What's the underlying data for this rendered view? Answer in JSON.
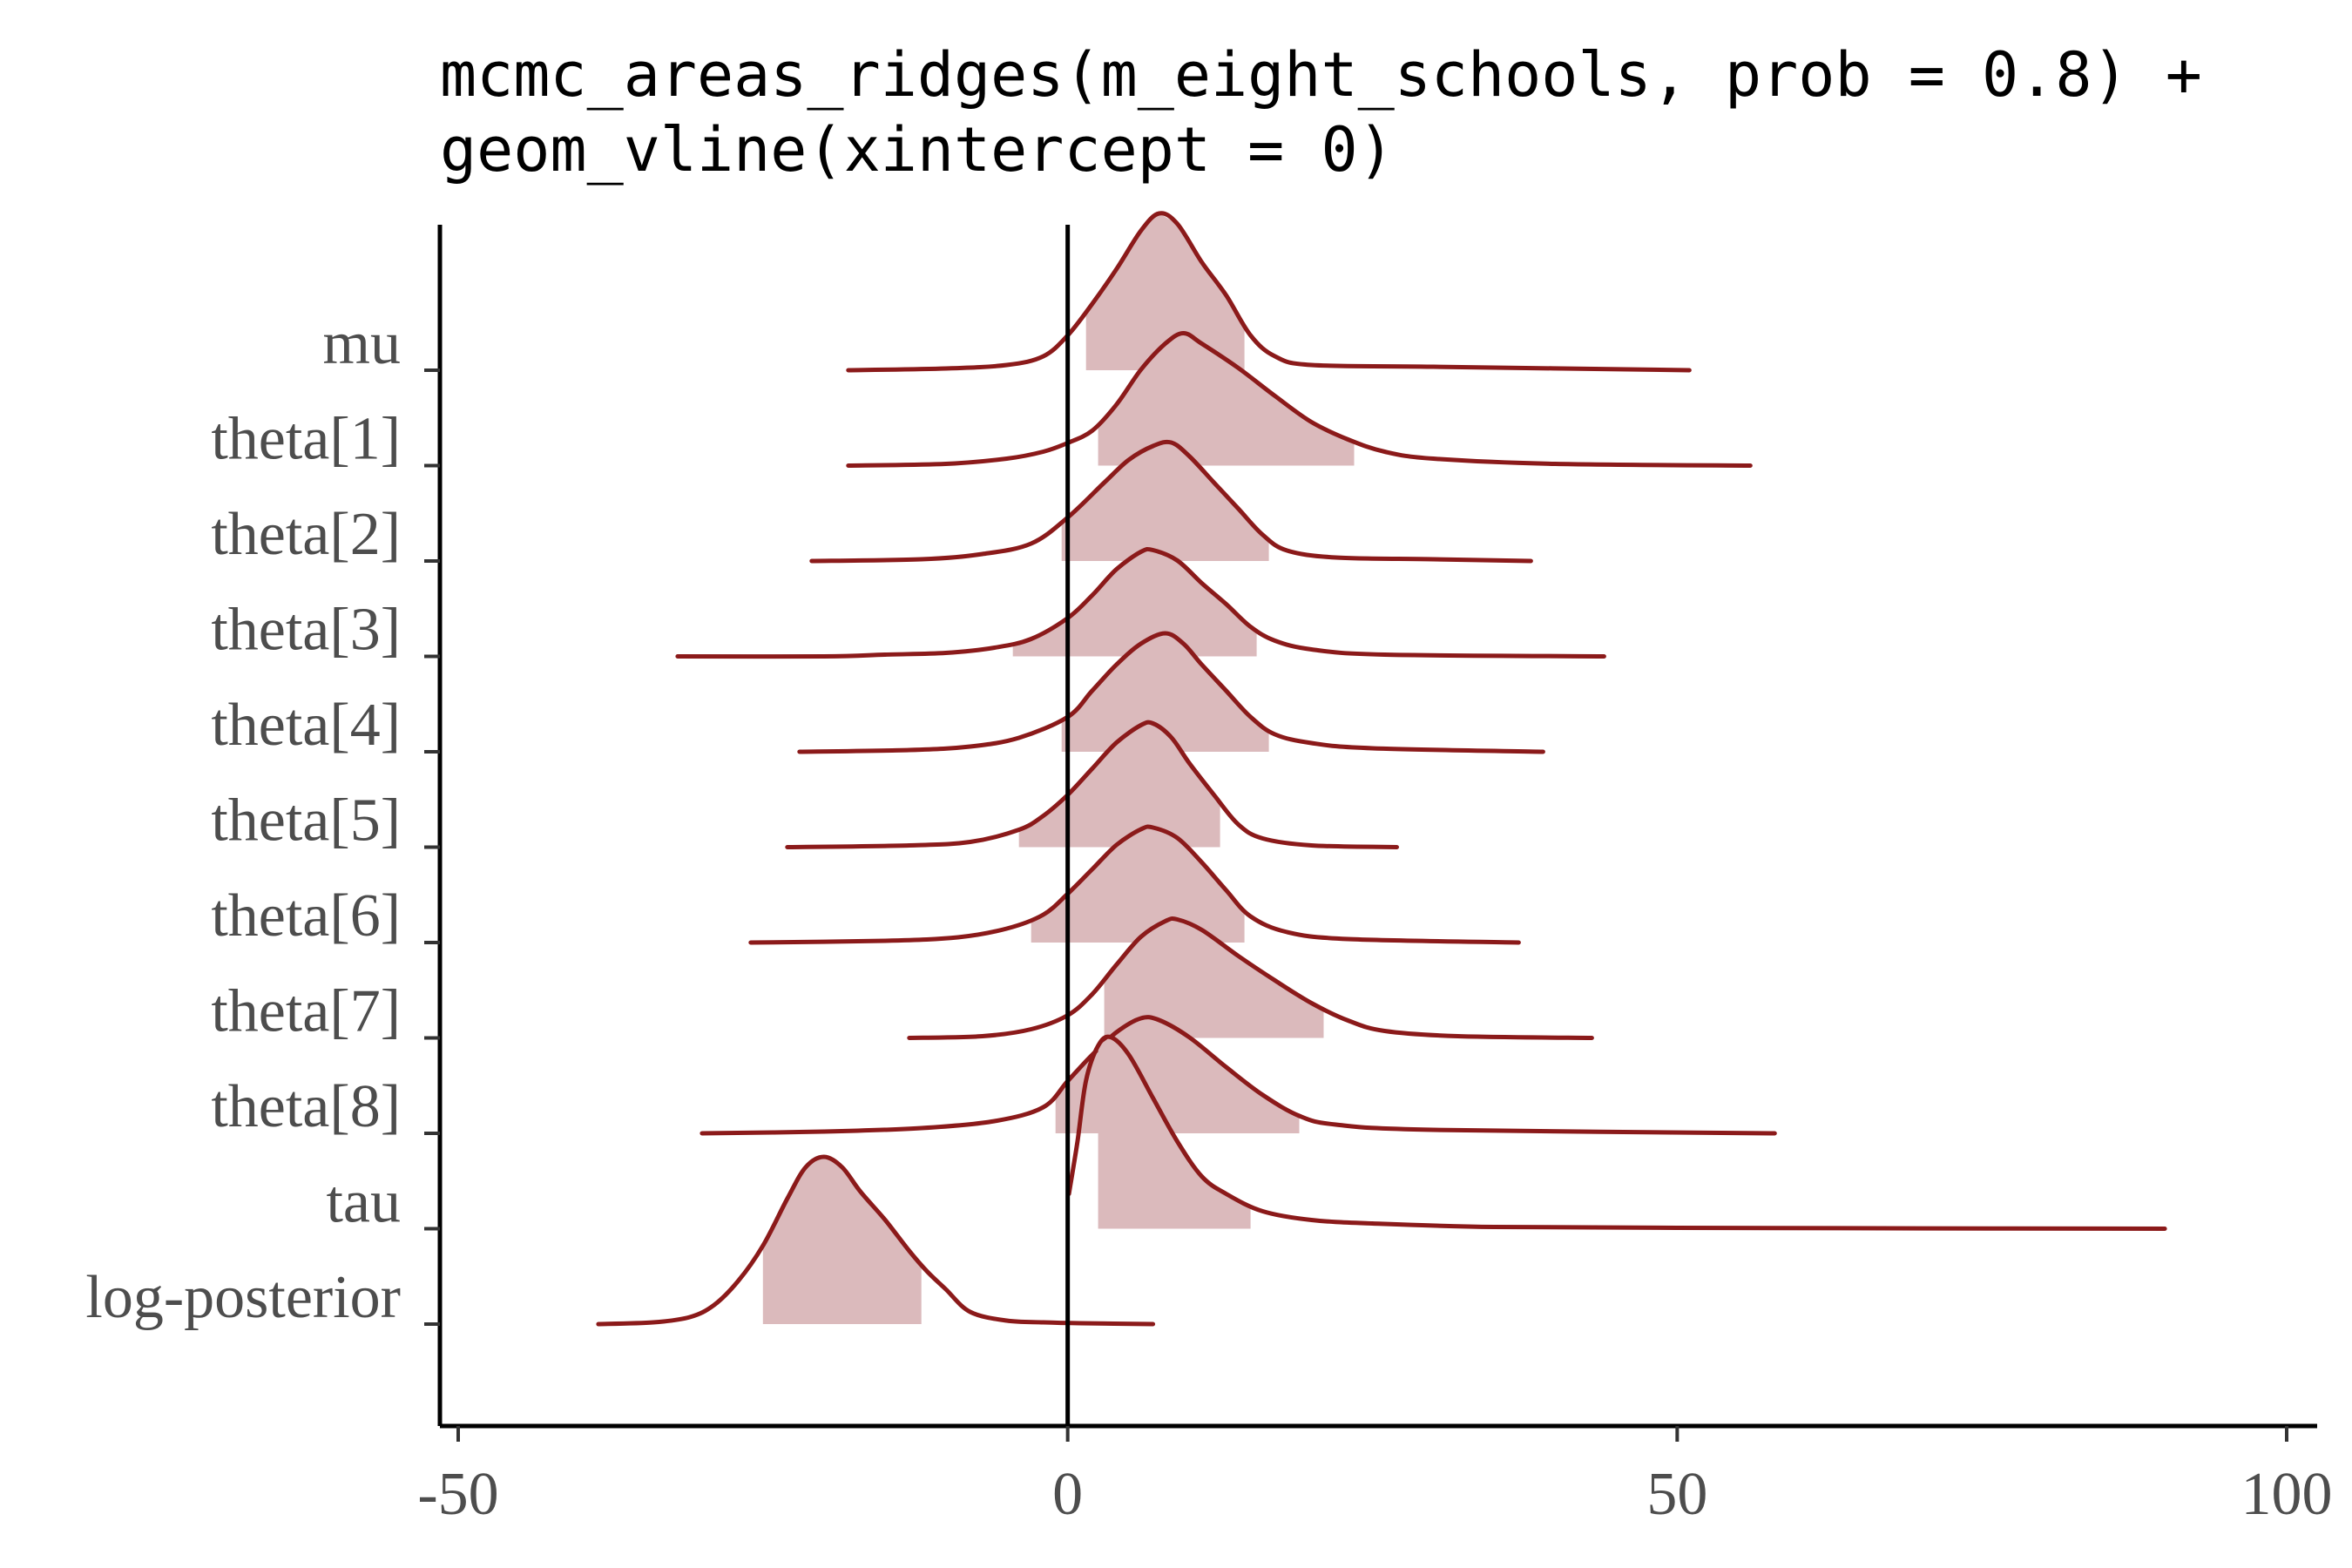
{
  "chart_data": {
    "type": "area",
    "title_lines": [
      "mcmc_areas_ridges(m_eight_schools, prob = 0.8) +",
      "  geom_vline(xintercept = 0)"
    ],
    "xlabel": "",
    "ylabel": "",
    "xlim": [
      -51.5,
      102.5
    ],
    "x_ticks": [
      -50,
      0,
      50,
      100
    ],
    "x_tick_labels": [
      "-50",
      "0",
      "50",
      "100"
    ],
    "vline_x": 0,
    "prob": 0.8,
    "colors": {
      "line": "#8b1a1a",
      "fill": "#dbbabc",
      "axis": "#000000",
      "text": "#4d4d4d"
    },
    "series": [
      {
        "name": "mu",
        "points": [
          [
            -18,
            0
          ],
          [
            -10,
            0.01
          ],
          [
            -5,
            0.03
          ],
          [
            -2,
            0.08
          ],
          [
            0,
            0.2
          ],
          [
            2,
            0.38
          ],
          [
            4,
            0.58
          ],
          [
            6,
            0.8
          ],
          [
            7.5,
            0.9
          ],
          [
            9,
            0.84
          ],
          [
            11,
            0.62
          ],
          [
            13,
            0.43
          ],
          [
            15,
            0.2
          ],
          [
            17,
            0.08
          ],
          [
            20,
            0.03
          ],
          [
            30,
            0.02
          ],
          [
            51,
            0
          ]
        ],
        "interval": [
          1.5,
          14.5
        ]
      },
      {
        "name": "theta[1]",
        "points": [
          [
            -18,
            0
          ],
          [
            -10,
            0.01
          ],
          [
            -5,
            0.04
          ],
          [
            -2,
            0.08
          ],
          [
            0,
            0.13
          ],
          [
            2,
            0.2
          ],
          [
            4,
            0.35
          ],
          [
            6,
            0.55
          ],
          [
            8,
            0.7
          ],
          [
            9.5,
            0.76
          ],
          [
            11,
            0.7
          ],
          [
            14,
            0.56
          ],
          [
            17,
            0.4
          ],
          [
            20,
            0.25
          ],
          [
            23,
            0.15
          ],
          [
            26,
            0.08
          ],
          [
            30,
            0.04
          ],
          [
            40,
            0.01
          ],
          [
            56,
            0
          ]
        ],
        "interval": [
          2.5,
          23.5
        ]
      },
      {
        "name": "theta[2]",
        "points": [
          [
            -21,
            0
          ],
          [
            -12,
            0.01
          ],
          [
            -7,
            0.04
          ],
          [
            -3,
            0.1
          ],
          [
            0,
            0.25
          ],
          [
            3,
            0.45
          ],
          [
            5,
            0.58
          ],
          [
            7,
            0.66
          ],
          [
            8.5,
            0.68
          ],
          [
            10,
            0.6
          ],
          [
            12,
            0.45
          ],
          [
            14,
            0.3
          ],
          [
            16,
            0.15
          ],
          [
            18,
            0.06
          ],
          [
            22,
            0.02
          ],
          [
            30,
            0.01
          ],
          [
            38,
            0
          ]
        ],
        "interval": [
          -0.5,
          16.5
        ]
      },
      {
        "name": "theta[3]",
        "points": [
          [
            -32,
            0
          ],
          [
            -20,
            0
          ],
          [
            -15,
            0.01
          ],
          [
            -10,
            0.02
          ],
          [
            -6,
            0.05
          ],
          [
            -3,
            0.1
          ],
          [
            0,
            0.22
          ],
          [
            2,
            0.35
          ],
          [
            4,
            0.5
          ],
          [
            6,
            0.6
          ],
          [
            7,
            0.61
          ],
          [
            9,
            0.55
          ],
          [
            11,
            0.42
          ],
          [
            13,
            0.3
          ],
          [
            15,
            0.17
          ],
          [
            17,
            0.09
          ],
          [
            20,
            0.04
          ],
          [
            26,
            0.01
          ],
          [
            44,
            0
          ]
        ],
        "interval": [
          -4.5,
          15.5
        ]
      },
      {
        "name": "theta[4]",
        "points": [
          [
            -22,
            0
          ],
          [
            -13,
            0.01
          ],
          [
            -8,
            0.03
          ],
          [
            -4,
            0.08
          ],
          [
            0,
            0.2
          ],
          [
            2,
            0.35
          ],
          [
            4,
            0.5
          ],
          [
            6,
            0.62
          ],
          [
            8,
            0.68
          ],
          [
            9.5,
            0.62
          ],
          [
            11,
            0.5
          ],
          [
            13,
            0.35
          ],
          [
            15,
            0.2
          ],
          [
            17,
            0.1
          ],
          [
            20,
            0.05
          ],
          [
            25,
            0.02
          ],
          [
            39,
            0
          ]
        ],
        "interval": [
          -0.5,
          16.5
        ]
      },
      {
        "name": "theta[5]",
        "points": [
          [
            -23,
            0
          ],
          [
            -13,
            0.01
          ],
          [
            -8,
            0.03
          ],
          [
            -4,
            0.1
          ],
          [
            -2,
            0.18
          ],
          [
            0,
            0.3
          ],
          [
            2,
            0.45
          ],
          [
            4,
            0.6
          ],
          [
            6,
            0.7
          ],
          [
            7,
            0.71
          ],
          [
            8.5,
            0.63
          ],
          [
            10,
            0.48
          ],
          [
            12,
            0.3
          ],
          [
            14,
            0.13
          ],
          [
            16,
            0.05
          ],
          [
            20,
            0.01
          ],
          [
            27,
            0
          ]
        ],
        "interval": [
          -4,
          12.5
        ]
      },
      {
        "name": "theta[6]",
        "points": [
          [
            -26,
            0
          ],
          [
            -15,
            0.01
          ],
          [
            -9,
            0.03
          ],
          [
            -5,
            0.08
          ],
          [
            -2,
            0.16
          ],
          [
            0,
            0.28
          ],
          [
            2,
            0.42
          ],
          [
            4,
            0.56
          ],
          [
            6,
            0.65
          ],
          [
            7,
            0.66
          ],
          [
            9,
            0.6
          ],
          [
            11,
            0.46
          ],
          [
            13,
            0.3
          ],
          [
            15,
            0.15
          ],
          [
            18,
            0.06
          ],
          [
            23,
            0.02
          ],
          [
            37,
            0
          ]
        ],
        "interval": [
          -3,
          14.5
        ]
      },
      {
        "name": "theta[7]",
        "points": [
          [
            -13,
            0
          ],
          [
            -7,
            0.01
          ],
          [
            -3,
            0.05
          ],
          [
            0,
            0.13
          ],
          [
            2,
            0.25
          ],
          [
            4,
            0.42
          ],
          [
            6,
            0.58
          ],
          [
            8,
            0.67
          ],
          [
            9,
            0.68
          ],
          [
            11,
            0.62
          ],
          [
            14,
            0.47
          ],
          [
            17,
            0.33
          ],
          [
            20,
            0.2
          ],
          [
            23,
            0.1
          ],
          [
            26,
            0.04
          ],
          [
            32,
            0.01
          ],
          [
            43,
            0
          ]
        ],
        "interval": [
          3,
          21
        ]
      },
      {
        "name": "theta[8]",
        "points": [
          [
            -30,
            0
          ],
          [
            -20,
            0.01
          ],
          [
            -12,
            0.03
          ],
          [
            -6,
            0.07
          ],
          [
            -2,
            0.15
          ],
          [
            0,
            0.3
          ],
          [
            2,
            0.45
          ],
          [
            4,
            0.58
          ],
          [
            6,
            0.66
          ],
          [
            7.5,
            0.65
          ],
          [
            10,
            0.55
          ],
          [
            13,
            0.38
          ],
          [
            16,
            0.22
          ],
          [
            19,
            0.1
          ],
          [
            22,
            0.05
          ],
          [
            30,
            0.02
          ],
          [
            58,
            0
          ]
        ],
        "interval": [
          -1,
          19
        ]
      },
      {
        "name": "tau",
        "points": [
          [
            0.1,
            0.2
          ],
          [
            0.8,
            0.5
          ],
          [
            1.5,
            0.85
          ],
          [
            2.5,
            1.05
          ],
          [
            3.5,
            1.1
          ],
          [
            5,
            1.0
          ],
          [
            7,
            0.75
          ],
          [
            9,
            0.5
          ],
          [
            11,
            0.3
          ],
          [
            13,
            0.2
          ],
          [
            16,
            0.1
          ],
          [
            20,
            0.05
          ],
          [
            25,
            0.03
          ],
          [
            35,
            0.01
          ],
          [
            50,
            0.005
          ],
          [
            70,
            0.002
          ],
          [
            90,
            0
          ]
        ],
        "interval": [
          2.5,
          15
        ]
      },
      {
        "name": "log-posterior",
        "points": [
          [
            -38.5,
            0
          ],
          [
            -34,
            0.01
          ],
          [
            -31,
            0.04
          ],
          [
            -29,
            0.11
          ],
          [
            -27,
            0.25
          ],
          [
            -25,
            0.45
          ],
          [
            -23,
            0.72
          ],
          [
            -21.5,
            0.9
          ],
          [
            -20,
            0.96
          ],
          [
            -18.5,
            0.9
          ],
          [
            -17,
            0.76
          ],
          [
            -15,
            0.6
          ],
          [
            -13,
            0.42
          ],
          [
            -11.5,
            0.3
          ],
          [
            -10,
            0.2
          ],
          [
            -8,
            0.07
          ],
          [
            -5,
            0.02
          ],
          [
            -2,
            0.01
          ],
          [
            1,
            0.005
          ],
          [
            7,
            0
          ]
        ],
        "interval": [
          -25,
          -12
        ]
      }
    ]
  }
}
